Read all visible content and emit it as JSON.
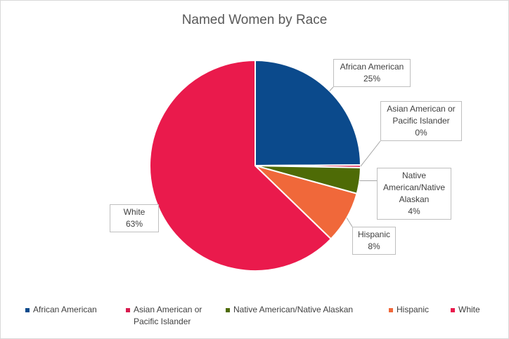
{
  "chart_data": {
    "type": "pie",
    "title": "Named Women by Race",
    "categories": [
      "African American",
      "Asian American or Pacific Islander",
      "Native American/Native Alaskan",
      "Hispanic",
      "White"
    ],
    "values": [
      25,
      0.4,
      4,
      8,
      63
    ],
    "value_labels": [
      "25%",
      "0%",
      "4%",
      "8%",
      "63%"
    ],
    "colors": [
      "#0b4a8c",
      "#d81b4e",
      "#4e6b06",
      "#f0683a",
      "#ea1a4c"
    ],
    "legend": "bottom"
  }
}
